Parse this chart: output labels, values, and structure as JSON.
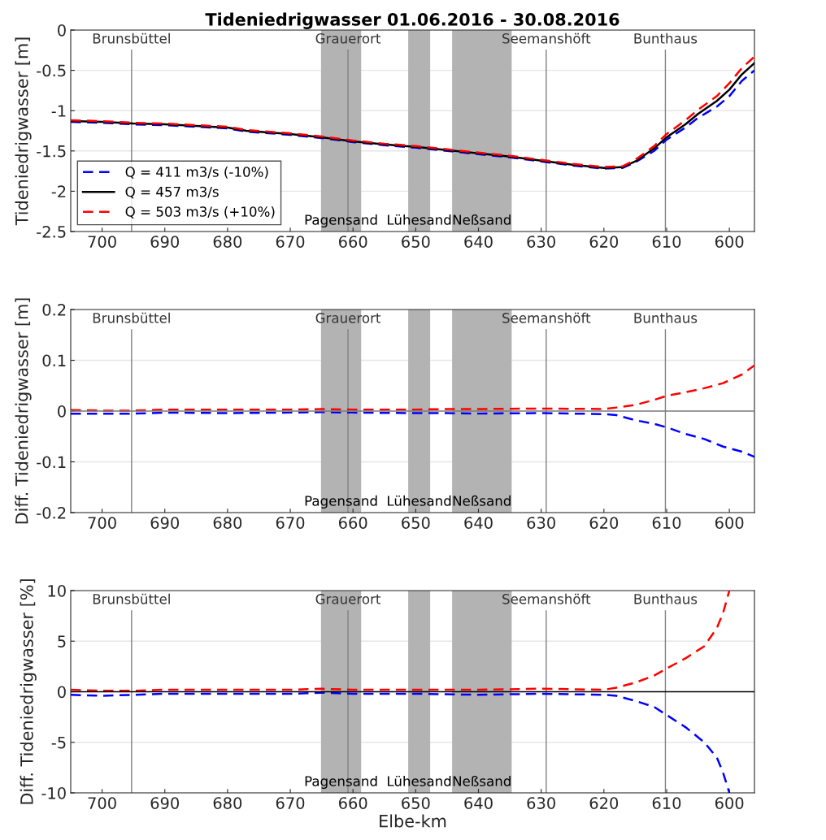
{
  "chart_data": [
    {
      "type": "line",
      "title": "Tideniedrigwasser 01.06.2016 - 30.08.2016",
      "ylabel": "Tideniedrigwasser [m]",
      "x": [
        705,
        700,
        695,
        690,
        685,
        680,
        677,
        670,
        665,
        660,
        655,
        650,
        645,
        640,
        635,
        630,
        625,
        620,
        617,
        615,
        612,
        610,
        607,
        605,
        602,
        600,
        598,
        596
      ],
      "series": [
        {
          "name": "Q = 411 m3/s (-10%)",
          "color": "#0000ff",
          "line_style": "dashed",
          "values": [
            -1.14,
            -1.15,
            -1.17,
            -1.18,
            -1.2,
            -1.22,
            -1.26,
            -1.3,
            -1.34,
            -1.39,
            -1.43,
            -1.46,
            -1.5,
            -1.54,
            -1.58,
            -1.63,
            -1.68,
            -1.72,
            -1.71,
            -1.64,
            -1.5,
            -1.36,
            -1.21,
            -1.09,
            -0.95,
            -0.82,
            -0.63,
            -0.5
          ]
        },
        {
          "name": "Q = 457 m3/s",
          "color": "#000000",
          "line_style": "solid",
          "values": [
            -1.13,
            -1.14,
            -1.16,
            -1.17,
            -1.19,
            -1.21,
            -1.25,
            -1.29,
            -1.33,
            -1.38,
            -1.42,
            -1.45,
            -1.49,
            -1.53,
            -1.57,
            -1.62,
            -1.67,
            -1.71,
            -1.7,
            -1.63,
            -1.47,
            -1.33,
            -1.17,
            -1.04,
            -0.88,
            -0.74,
            -0.55,
            -0.41
          ]
        },
        {
          "name": "Q = 503 m3/s (+10%)",
          "color": "#ff0000",
          "line_style": "dashed",
          "values": [
            -1.12,
            -1.13,
            -1.15,
            -1.16,
            -1.18,
            -1.2,
            -1.24,
            -1.28,
            -1.32,
            -1.37,
            -1.41,
            -1.44,
            -1.48,
            -1.52,
            -1.56,
            -1.61,
            -1.66,
            -1.7,
            -1.69,
            -1.61,
            -1.44,
            -1.29,
            -1.12,
            -0.99,
            -0.82,
            -0.66,
            -0.47,
            -0.33
          ]
        }
      ],
      "xlim": [
        705,
        596
      ],
      "xticks": [
        700,
        690,
        680,
        670,
        660,
        650,
        640,
        630,
        620,
        610,
        600
      ],
      "ylim": [
        -2.5,
        0
      ],
      "yticks": [
        -2.5,
        -2,
        -1.5,
        -1,
        -0.5,
        0
      ],
      "grid": "y",
      "legend": "bottom left",
      "ref_lines": [
        {
          "axis": "x",
          "value": 695.3,
          "label": "Brunsbüttel",
          "color": "#808080"
        },
        {
          "axis": "x",
          "value": 660.8,
          "label": "Grauerort",
          "color": "#808080"
        },
        {
          "axis": "x",
          "value": 629.2,
          "label": "Seemanshöft",
          "color": "#808080"
        },
        {
          "axis": "x",
          "value": 610.2,
          "label": "Bunthaus",
          "color": "#808080"
        }
      ],
      "bands": [
        {
          "axis": "x",
          "from": 665.1,
          "to": 658.7,
          "label": "Pagensand",
          "color": "#b3b3b3"
        },
        {
          "axis": "x",
          "from": 651.2,
          "to": 647.7,
          "label": "Lühesand",
          "color": "#b3b3b3"
        },
        {
          "axis": "x",
          "from": 644.2,
          "to": 634.7,
          "label": "Neßsand",
          "color": "#b3b3b3"
        }
      ]
    },
    {
      "type": "line",
      "ylabel": "Diff. Tideniedrigwasser [m]",
      "x": [
        705,
        700,
        695,
        690,
        680,
        670,
        665,
        660,
        650,
        645,
        640,
        630,
        620,
        618,
        615,
        612,
        610,
        607,
        604,
        601,
        598,
        596
      ],
      "series": [
        {
          "color": "#0000ff",
          "line_style": "dashed",
          "values": [
            -0.005,
            -0.005,
            -0.005,
            -0.003,
            -0.004,
            -0.003,
            -0.002,
            -0.003,
            -0.004,
            -0.004,
            -0.005,
            -0.004,
            -0.006,
            -0.008,
            -0.018,
            -0.025,
            -0.032,
            -0.045,
            -0.055,
            -0.07,
            -0.08,
            -0.09
          ]
        },
        {
          "color": "#ff0000",
          "line_style": "dashed",
          "values": [
            0.002,
            0.001,
            0.001,
            0.003,
            0.003,
            0.003,
            0.004,
            0.003,
            0.003,
            0.004,
            0.004,
            0.005,
            0.004,
            0.007,
            0.012,
            0.022,
            0.03,
            0.037,
            0.045,
            0.055,
            0.072,
            0.09
          ]
        }
      ],
      "xlim": [
        705,
        596
      ],
      "xticks": [
        700,
        690,
        680,
        670,
        660,
        650,
        640,
        630,
        620,
        610,
        600
      ],
      "ylim": [
        -0.2,
        0.2
      ],
      "yticks": [
        -0.2,
        -0.1,
        0,
        0.1,
        0.2
      ],
      "grid": "y",
      "ref_lines": [
        {
          "axis": "y",
          "value": 0,
          "color": "#7a7a7a"
        },
        {
          "axis": "x",
          "value": 695.3,
          "label": "Brunsbüttel",
          "color": "#808080"
        },
        {
          "axis": "x",
          "value": 660.8,
          "label": "Grauerort",
          "color": "#808080"
        },
        {
          "axis": "x",
          "value": 629.2,
          "label": "Seemanshöft",
          "color": "#808080"
        },
        {
          "axis": "x",
          "value": 610.2,
          "label": "Bunthaus",
          "color": "#808080"
        }
      ],
      "bands": [
        {
          "axis": "x",
          "from": 665.1,
          "to": 658.7,
          "label": "Pagensand",
          "color": "#b3b3b3"
        },
        {
          "axis": "x",
          "from": 651.2,
          "to": 647.7,
          "label": "Lühesand",
          "color": "#b3b3b3"
        },
        {
          "axis": "x",
          "from": 644.2,
          "to": 634.7,
          "label": "Neßsand",
          "color": "#b3b3b3"
        }
      ]
    },
    {
      "type": "line",
      "ylabel": "Diff. Tideniedrigwasser [%]",
      "xlabel": "Elbe-km",
      "x": [
        705,
        700,
        695,
        690,
        680,
        670,
        665,
        660,
        650,
        640,
        630,
        620,
        618,
        615,
        612,
        610,
        607,
        604,
        602,
        601,
        600
      ],
      "series": [
        {
          "color": "#0000ff",
          "line_style": "dashed",
          "values": [
            -0.3,
            -0.4,
            -0.3,
            -0.2,
            -0.2,
            -0.2,
            -0.1,
            -0.2,
            -0.2,
            -0.3,
            -0.2,
            -0.3,
            -0.4,
            -0.9,
            -1.5,
            -2.3,
            -3.5,
            -5.0,
            -6.5,
            -8.0,
            -10
          ]
        },
        {
          "color": "#ff0000",
          "line_style": "dashed",
          "values": [
            0.2,
            0.1,
            0.1,
            0.2,
            0.2,
            0.2,
            0.3,
            0.2,
            0.2,
            0.2,
            0.3,
            0.2,
            0.4,
            0.9,
            1.6,
            2.3,
            3.3,
            4.5,
            6.3,
            7.8,
            10
          ]
        }
      ],
      "xlim": [
        705,
        596
      ],
      "xticks": [
        700,
        690,
        680,
        670,
        660,
        650,
        640,
        630,
        620,
        610,
        600
      ],
      "ylim": [
        -10,
        10
      ],
      "yticks": [
        -10,
        -5,
        0,
        5,
        10
      ],
      "grid": "y",
      "ref_lines": [
        {
          "axis": "y",
          "value": 0,
          "color": "#000000"
        },
        {
          "axis": "x",
          "value": 695.3,
          "label": "Brunsbüttel",
          "color": "#808080"
        },
        {
          "axis": "x",
          "value": 660.8,
          "label": "Grauerort",
          "color": "#808080"
        },
        {
          "axis": "x",
          "value": 629.2,
          "label": "Seemanshöft",
          "color": "#808080"
        },
        {
          "axis": "x",
          "value": 610.2,
          "label": "Bunthaus",
          "color": "#808080"
        }
      ],
      "bands": [
        {
          "axis": "x",
          "from": 665.1,
          "to": 658.7,
          "label": "Pagensand",
          "color": "#b3b3b3"
        },
        {
          "axis": "x",
          "from": 651.2,
          "to": 647.7,
          "label": "Lühesand",
          "color": "#b3b3b3"
        },
        {
          "axis": "x",
          "from": 644.2,
          "to": 634.7,
          "label": "Neßsand",
          "color": "#b3b3b3"
        }
      ]
    }
  ]
}
